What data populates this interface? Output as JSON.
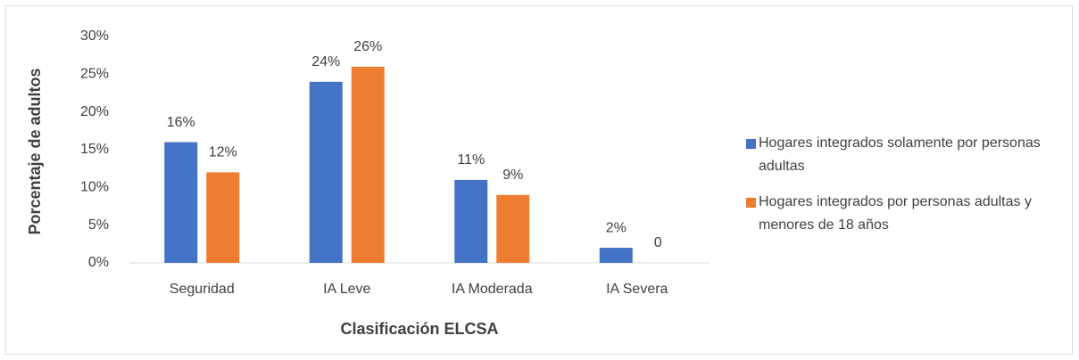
{
  "chart_data": {
    "type": "bar",
    "x_label": "Clasificación ELCSA",
    "y_label": "Porcentaje de adultos",
    "categories": [
      "Seguridad",
      "IA Leve",
      "IA Moderada",
      "IA Severa"
    ],
    "series": [
      {
        "name": "Hogares integrados solamente por personas adultas",
        "color": "#4472c4",
        "values": [
          16,
          24,
          11,
          2
        ],
        "value_labels": [
          "16%",
          "24%",
          "11%",
          "2%"
        ]
      },
      {
        "name": "Hogares integrados por personas adultas y menores de 18 años",
        "color": "#ed7d31",
        "values": [
          12,
          26,
          9,
          0
        ],
        "value_labels": [
          "12%",
          "26%",
          "9%",
          "0"
        ]
      }
    ],
    "ylim": [
      0,
      30
    ],
    "yticks": [
      {
        "value": 0,
        "label": "0%"
      },
      {
        "value": 5,
        "label": "5%"
      },
      {
        "value": 10,
        "label": "10%"
      },
      {
        "value": 15,
        "label": "15%"
      },
      {
        "value": 20,
        "label": "20%"
      },
      {
        "value": 25,
        "label": "25%"
      },
      {
        "value": 30,
        "label": "30%"
      }
    ],
    "grid": false,
    "legend": "right"
  }
}
